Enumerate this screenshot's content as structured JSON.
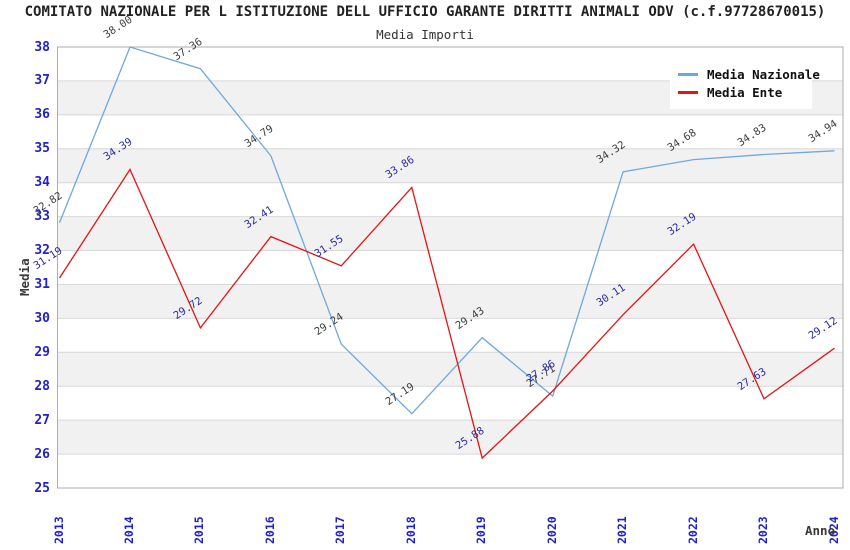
{
  "chart_data": {
    "type": "line",
    "title": "COMITATO NAZIONALE PER L ISTITUZIONE DELL UFFICIO GARANTE DIRITTI ANIMALI ODV (c.f.97728670015)",
    "subtitle": "Media Importi",
    "xlabel": "Anno",
    "ylabel": "Media",
    "ylim": [
      25,
      38
    ],
    "yticks": [
      25,
      26,
      27,
      28,
      29,
      30,
      31,
      32,
      33,
      34,
      35,
      36,
      37,
      38
    ],
    "grid": true,
    "legend_position": "top-right",
    "categories": [
      "2013",
      "2014",
      "2015",
      "2016",
      "2017",
      "2018",
      "2019",
      "2020",
      "2021",
      "2022",
      "2023",
      "2024"
    ],
    "series": [
      {
        "name": "Media Nazionale",
        "color": "#6FA8DC",
        "label_color": "#3D3D3D",
        "values": [
          32.82,
          38.0,
          37.36,
          34.79,
          29.24,
          27.19,
          29.43,
          27.71,
          34.32,
          34.68,
          34.83,
          34.94
        ]
      },
      {
        "name": "Media Ente",
        "color": "#E41414",
        "label_color": "#2B2B9E",
        "values": [
          31.19,
          34.39,
          29.72,
          32.41,
          31.55,
          33.86,
          25.88,
          27.86,
          30.11,
          32.19,
          27.63,
          29.12
        ]
      }
    ],
    "colors": {
      "band": "#F1F1F1",
      "grid": "#D8D8D8",
      "border": "#ADADAD",
      "tick_label": "#2020CC",
      "axis_title": "#3A3A3A"
    }
  }
}
